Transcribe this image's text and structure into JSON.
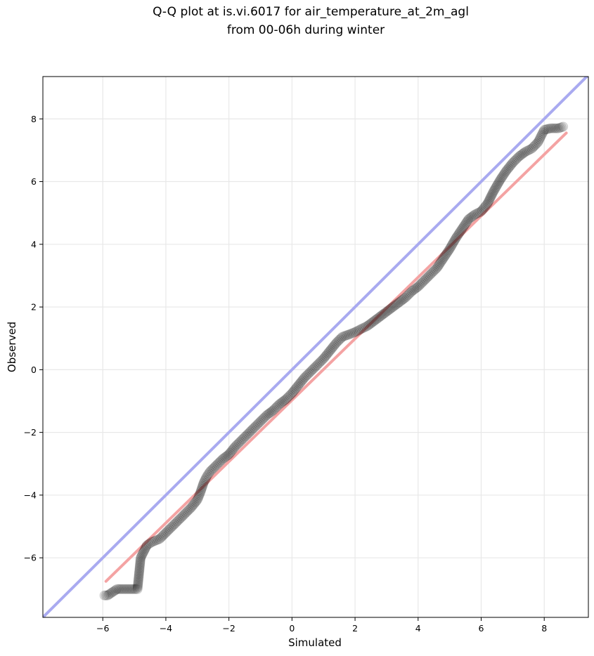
{
  "chart_data": {
    "type": "scatter",
    "title": "Q-Q plot at is.vi.6017 for air_temperature_at_2m_agl",
    "subtitle": "from 00-06h during winter",
    "xlabel": "Simulated",
    "ylabel": "Observed",
    "xlim": [
      -7.9,
      9.4
    ],
    "ylim": [
      -7.9,
      9.35
    ],
    "xticks": [
      -6,
      -4,
      -2,
      0,
      2,
      4,
      6,
      8
    ],
    "yticks": [
      -6,
      -4,
      -2,
      0,
      2,
      4,
      6,
      8
    ],
    "xtick_labels": [
      "−6",
      "−4",
      "−2",
      "0",
      "2",
      "4",
      "6",
      "8"
    ],
    "ytick_labels": [
      "−6",
      "−4",
      "−2",
      "0",
      "2",
      "4",
      "6",
      "8"
    ],
    "grid": true,
    "legend": "none",
    "series": [
      {
        "kind": "scatter",
        "color": "#000000",
        "points": [
          [
            -5.95,
            -7.2
          ],
          [
            -5.85,
            -7.2
          ],
          [
            -5.55,
            -7.0
          ],
          [
            -4.9,
            -7.0
          ],
          [
            -4.8,
            -6.0
          ],
          [
            -4.6,
            -5.6
          ],
          [
            -4.45,
            -5.5
          ],
          [
            -4.2,
            -5.4
          ],
          [
            -4.0,
            -5.2
          ],
          [
            -3.8,
            -5.0
          ],
          [
            -3.6,
            -4.8
          ],
          [
            -3.4,
            -4.6
          ],
          [
            -3.2,
            -4.4
          ],
          [
            -3.0,
            -4.15
          ],
          [
            -2.9,
            -3.9
          ],
          [
            -2.8,
            -3.6
          ],
          [
            -2.7,
            -3.4
          ],
          [
            -2.6,
            -3.25
          ],
          [
            -2.4,
            -3.05
          ],
          [
            -2.2,
            -2.85
          ],
          [
            -2.0,
            -2.7
          ],
          [
            -1.8,
            -2.45
          ],
          [
            -1.6,
            -2.25
          ],
          [
            -1.4,
            -2.05
          ],
          [
            -1.2,
            -1.85
          ],
          [
            -1.0,
            -1.65
          ],
          [
            -0.8,
            -1.45
          ],
          [
            -0.6,
            -1.3
          ],
          [
            -0.4,
            -1.1
          ],
          [
            -0.2,
            -0.95
          ],
          [
            0.0,
            -0.75
          ],
          [
            0.2,
            -0.5
          ],
          [
            0.4,
            -0.25
          ],
          [
            0.6,
            -0.05
          ],
          [
            0.8,
            0.15
          ],
          [
            1.0,
            0.35
          ],
          [
            1.2,
            0.6
          ],
          [
            1.4,
            0.85
          ],
          [
            1.6,
            1.05
          ],
          [
            1.8,
            1.12
          ],
          [
            2.0,
            1.2
          ],
          [
            2.2,
            1.3
          ],
          [
            2.4,
            1.4
          ],
          [
            2.6,
            1.55
          ],
          [
            2.8,
            1.7
          ],
          [
            3.0,
            1.85
          ],
          [
            3.2,
            2.0
          ],
          [
            3.4,
            2.15
          ],
          [
            3.6,
            2.3
          ],
          [
            3.8,
            2.5
          ],
          [
            4.0,
            2.65
          ],
          [
            4.2,
            2.85
          ],
          [
            4.4,
            3.05
          ],
          [
            4.6,
            3.25
          ],
          [
            4.8,
            3.55
          ],
          [
            5.0,
            3.85
          ],
          [
            5.2,
            4.2
          ],
          [
            5.4,
            4.5
          ],
          [
            5.6,
            4.8
          ],
          [
            5.8,
            4.95
          ],
          [
            6.0,
            5.05
          ],
          [
            6.2,
            5.3
          ],
          [
            6.4,
            5.7
          ],
          [
            6.6,
            6.05
          ],
          [
            6.8,
            6.35
          ],
          [
            7.0,
            6.6
          ],
          [
            7.2,
            6.8
          ],
          [
            7.4,
            6.95
          ],
          [
            7.6,
            7.05
          ],
          [
            7.8,
            7.25
          ],
          [
            7.9,
            7.45
          ],
          [
            8.0,
            7.65
          ],
          [
            8.2,
            7.7
          ],
          [
            8.45,
            7.7
          ],
          [
            8.6,
            7.75
          ]
        ]
      },
      {
        "kind": "line",
        "color": "#a9aaf0",
        "points": [
          [
            -7.9,
            -7.9
          ],
          [
            9.4,
            9.4
          ]
        ]
      },
      {
        "kind": "line",
        "color": "#f4a3a3",
        "points": [
          [
            -5.9,
            -6.75
          ],
          [
            8.7,
            7.55
          ]
        ]
      }
    ]
  }
}
